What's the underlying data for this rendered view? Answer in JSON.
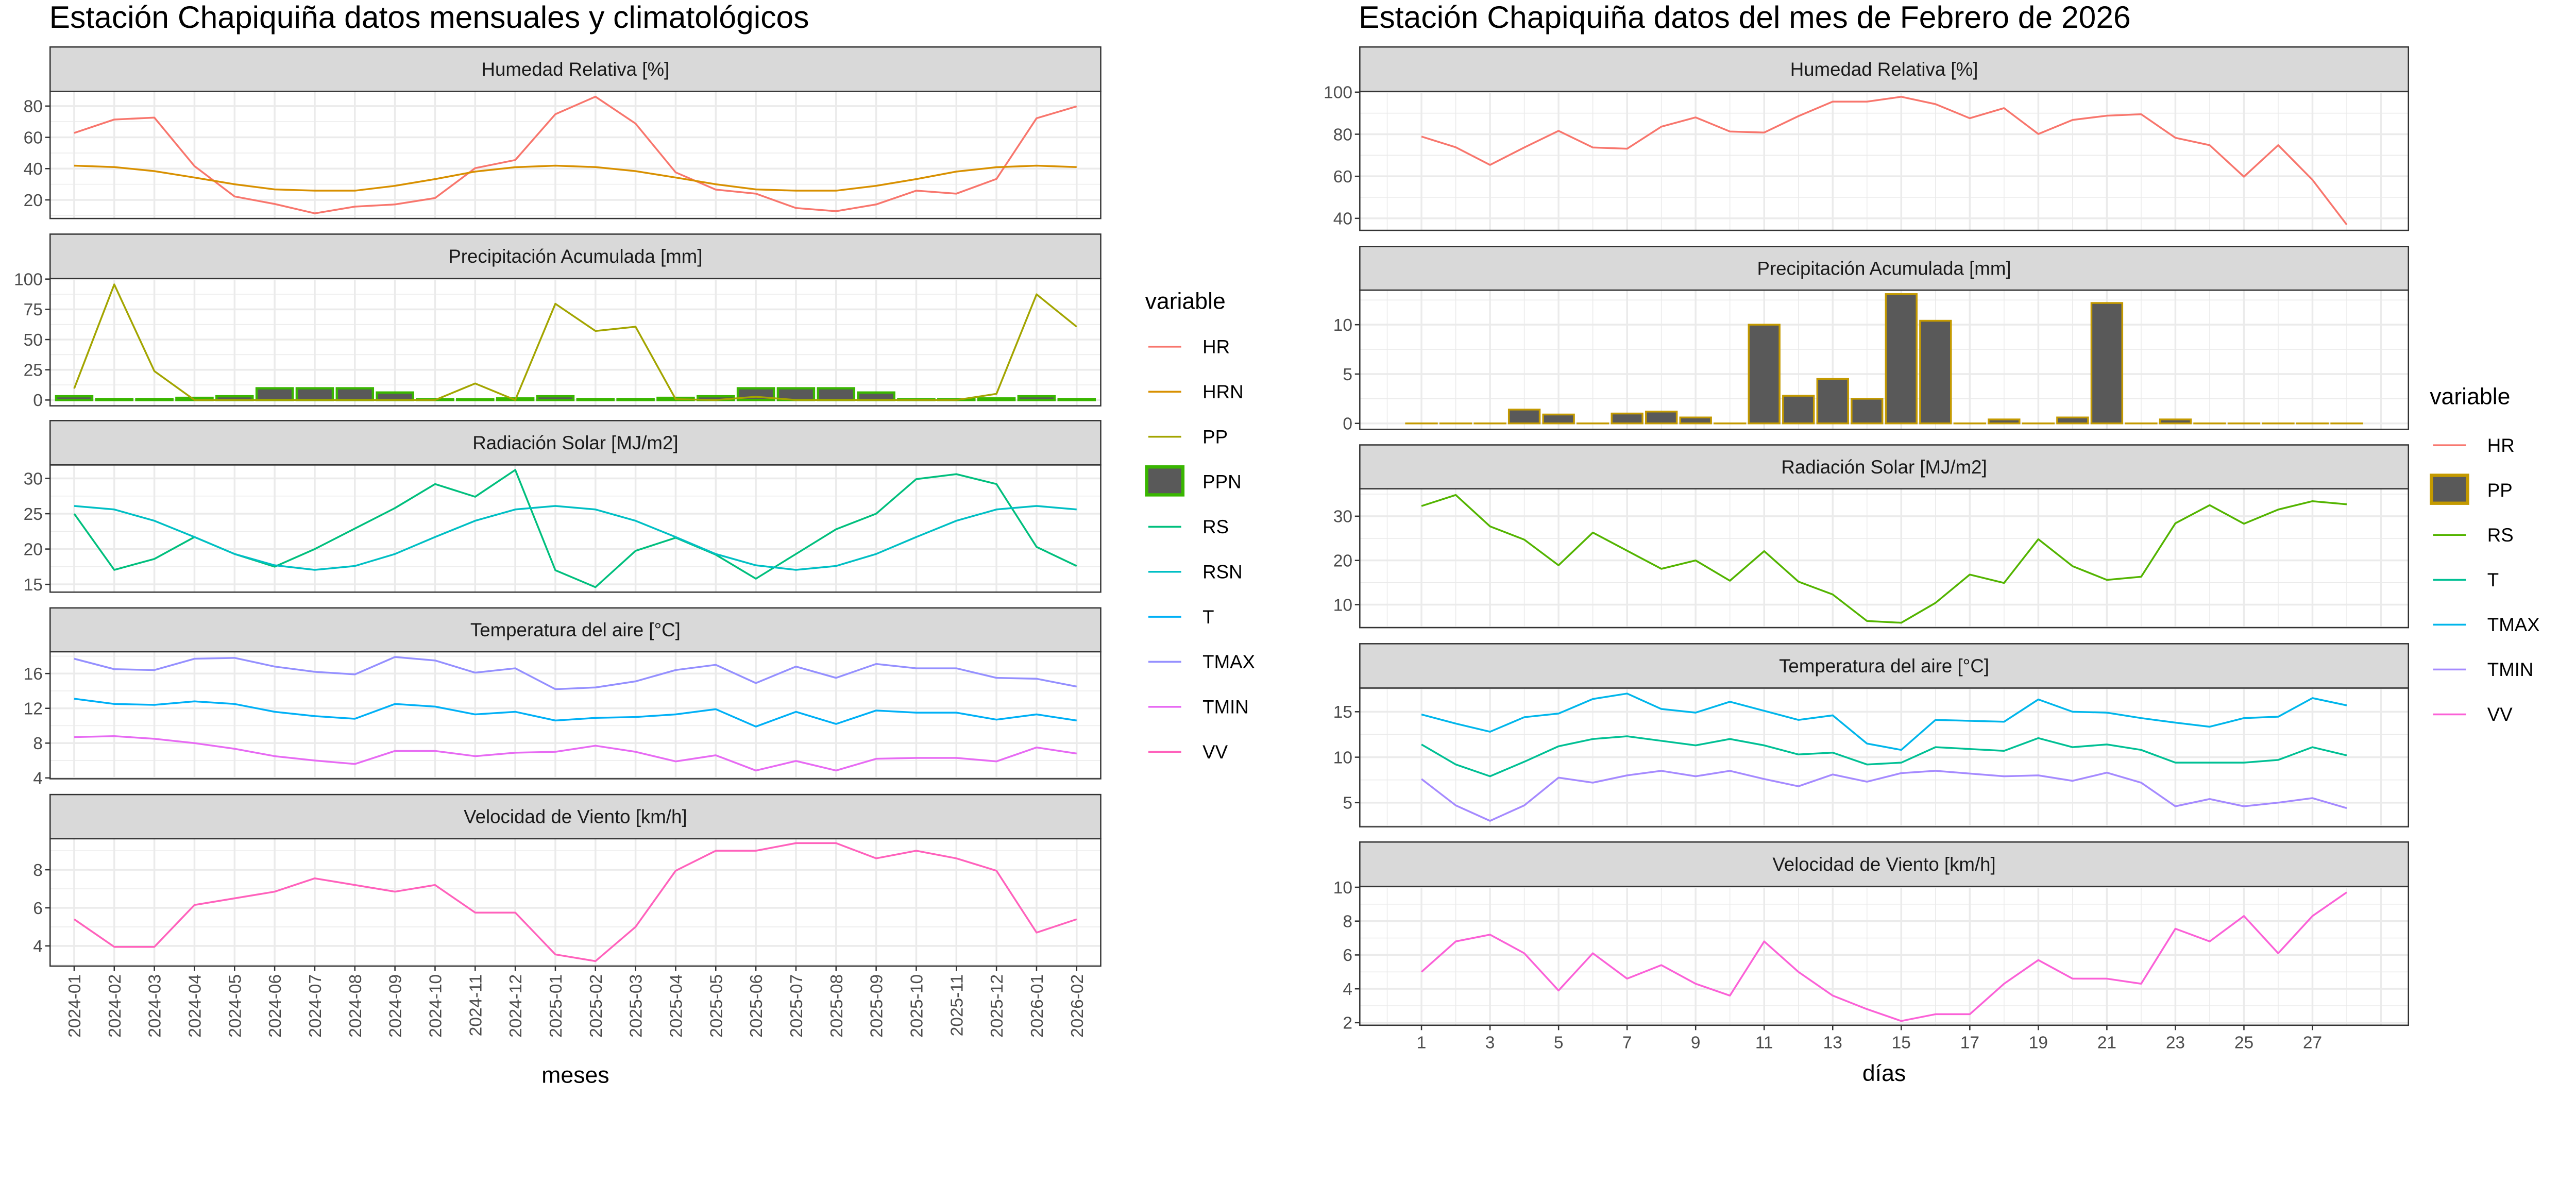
{
  "chart_data": [
    {
      "type": "line",
      "title": "Estación Chapiquiña datos mensuales y climatológicos",
      "xlabel": "meses",
      "categories": [
        "2024-01",
        "2024-02",
        "2024-03",
        "2024-04",
        "2024-05",
        "2024-06",
        "2024-07",
        "2024-08",
        "2024-09",
        "2024-10",
        "2024-11",
        "2024-12",
        "2025-01",
        "2025-02",
        "2025-03",
        "2025-04",
        "2025-05",
        "2025-06",
        "2025-07",
        "2025-08",
        "2025-09",
        "2025-10",
        "2025-11",
        "2025-12",
        "2026-01",
        "2026-02"
      ],
      "grid": true,
      "legend": {
        "title": "variable",
        "position": "right",
        "entries": [
          {
            "name": "HR",
            "color": "#F8766D",
            "key": "line"
          },
          {
            "name": "HRN",
            "color": "#D89000",
            "key": "line"
          },
          {
            "name": "PP",
            "color": "#A3A500",
            "key": "line"
          },
          {
            "name": "PPN",
            "color": "#39B600",
            "fill": "#595959",
            "key": "box"
          },
          {
            "name": "RS",
            "color": "#00BF7D",
            "key": "line"
          },
          {
            "name": "RSN",
            "color": "#00BFC4",
            "key": "line"
          },
          {
            "name": "T",
            "color": "#00B0F6",
            "key": "line"
          },
          {
            "name": "TMAX",
            "color": "#9590FF",
            "key": "line"
          },
          {
            "name": "TMIN",
            "color": "#E76BF3",
            "key": "line"
          },
          {
            "name": "VV",
            "color": "#FF62BC",
            "key": "line"
          }
        ]
      },
      "panels": [
        {
          "title": "Humedad Relativa [%]",
          "ylim": [
            8.1,
            89.4
          ],
          "yticks": [
            20,
            40,
            60,
            80
          ],
          "series": [
            {
              "name": "HR",
              "geom": "line",
              "color": "#F8766D",
              "values": [
                62.8,
                71.4,
                72.6,
                41.6,
                22.2,
                17.4,
                11.4,
                15.7,
                17.1,
                21.2,
                40.3,
                45.5,
                74.8,
                86,
                68.8,
                37.6,
                26.6,
                24,
                14.8,
                12.8,
                17.1,
                25.9,
                24,
                33.4,
                72.2,
                79.8
              ]
            },
            {
              "name": "HRN",
              "geom": "line",
              "color": "#D89000",
              "values": [
                41.9,
                41,
                38.4,
                34.3,
                30,
                26.7,
                25.9,
                25.9,
                29,
                33.3,
                38.1,
                40.9,
                41.9,
                41,
                38.4,
                34.3,
                30,
                26.7,
                25.9,
                25.9,
                29,
                33.3,
                38.1,
                40.9,
                41.9,
                41
              ]
            }
          ]
        },
        {
          "title": "Precipitación Acumulada [mm]",
          "ylim": [
            -4.8,
            100.5
          ],
          "yticks": [
            0,
            25,
            50,
            75,
            100
          ],
          "series": [
            {
              "name": "PPN",
              "geom": "bar",
              "color": "#39B600",
              "fill": "#595959",
              "values": [
                3.1,
                0.8,
                0.8,
                1.8,
                3.1,
                9.7,
                9.7,
                9.7,
                6.2,
                0.6,
                0.6,
                1.3,
                3.1,
                0.8,
                0.8,
                1.8,
                3.1,
                9.7,
                9.7,
                9.7,
                6.2,
                0.6,
                0.6,
                1.3,
                3.1,
                0.8
              ]
            },
            {
              "name": "PP",
              "geom": "line",
              "color": "#A3A500",
              "values": [
                9.5,
                95.6,
                23.9,
                0,
                0,
                0,
                0,
                0,
                0,
                0,
                13.7,
                0,
                79.6,
                57.1,
                60.6,
                0.7,
                0,
                2.7,
                0,
                0,
                0,
                0,
                0,
                5.1,
                87.4,
                60.6
              ]
            }
          ]
        },
        {
          "title": "Radiación Solar [MJ/m2]",
          "ylim": [
            13.9,
            31.9
          ],
          "yticks": [
            15,
            20,
            25,
            30
          ],
          "series": [
            {
              "name": "RS",
              "geom": "line",
              "color": "#00BF7D",
              "values": [
                25,
                17.05,
                18.6,
                21.7,
                19.3,
                17.5,
                20,
                22.9,
                25.8,
                29.2,
                27.4,
                31.2,
                17,
                14.6,
                19.75,
                21.6,
                19.2,
                15.8,
                19.3,
                22.8,
                25,
                29.9,
                30.6,
                29.2,
                20.3,
                17.6
              ]
            },
            {
              "name": "RSN",
              "geom": "line",
              "color": "#00BFC4",
              "values": [
                26.1,
                25.6,
                24,
                21.7,
                19.3,
                17.7,
                17.05,
                17.6,
                19.3,
                21.7,
                24,
                25.6,
                26.1,
                25.6,
                24,
                21.7,
                19.3,
                17.7,
                17.05,
                17.6,
                19.3,
                21.7,
                24,
                25.6,
                26.1,
                25.6
              ]
            }
          ]
        },
        {
          "title": "Temperatura del aire [°C]",
          "ylim": [
            3.9,
            18.5
          ],
          "yticks": [
            4,
            8,
            12,
            16
          ],
          "series": [
            {
              "name": "TMAX",
              "geom": "line",
              "color": "#9590FF",
              "values": [
                17.7,
                16.5,
                16.4,
                17.7,
                17.8,
                16.8,
                16.2,
                15.9,
                17.9,
                17.5,
                16.1,
                16.6,
                14.2,
                14.4,
                15.1,
                16.4,
                17,
                14.9,
                16.8,
                15.5,
                17.1,
                16.6,
                16.6,
                15.5,
                15.4,
                14.5
              ]
            },
            {
              "name": "T",
              "geom": "line",
              "color": "#00B0F6",
              "values": [
                13.1,
                12.5,
                12.4,
                12.8,
                12.5,
                11.6,
                11.1,
                10.8,
                12.5,
                12.2,
                11.3,
                11.6,
                10.6,
                10.9,
                11,
                11.3,
                11.9,
                9.9,
                11.6,
                10.2,
                11.75,
                11.5,
                11.5,
                10.7,
                11.3,
                10.6
              ]
            },
            {
              "name": "TMIN",
              "geom": "line",
              "color": "#E76BF3",
              "values": [
                8.7,
                8.8,
                8.5,
                8,
                7.35,
                6.5,
                6,
                5.6,
                7.1,
                7.1,
                6.5,
                6.9,
                7,
                7.7,
                7,
                5.9,
                6.6,
                4.85,
                5.95,
                4.85,
                6.2,
                6.3,
                6.3,
                5.9,
                7.5,
                6.8
              ]
            }
          ]
        },
        {
          "title": "Velocidad de Viento [km/h]",
          "ylim": [
            2.94,
            9.63
          ],
          "yticks": [
            4,
            6,
            8
          ],
          "series": [
            {
              "name": "VV",
              "geom": "line",
              "color": "#FF62BC",
              "values": [
                5.4,
                3.95,
                3.95,
                6.15,
                6.5,
                6.85,
                7.55,
                7.2,
                6.85,
                7.2,
                5.75,
                5.75,
                3.55,
                3.2,
                5,
                7.95,
                9,
                9,
                9.4,
                9.4,
                8.6,
                9,
                8.6,
                7.95,
                4.7,
                5.4
              ]
            }
          ]
        }
      ]
    },
    {
      "type": "line",
      "title": "Estación Chapiquiña datos del mes de Febrero de 2026",
      "xlabel": "días",
      "x": [
        1,
        2,
        3,
        4,
        5,
        6,
        7,
        8,
        9,
        10,
        11,
        12,
        13,
        14,
        15,
        16,
        17,
        18,
        19,
        20,
        21,
        22,
        23,
        24,
        25,
        26,
        27,
        28
      ],
      "xticks": [
        1,
        3,
        5,
        7,
        9,
        11,
        13,
        15,
        17,
        19,
        21,
        23,
        25,
        27
      ],
      "grid": true,
      "legend": {
        "title": "variable",
        "position": "right",
        "entries": [
          {
            "name": "HR",
            "color": "#F8766D",
            "key": "line"
          },
          {
            "name": "PP",
            "color": "#C49A00",
            "fill": "#595959",
            "key": "box"
          },
          {
            "name": "RS",
            "color": "#53B400",
            "key": "line"
          },
          {
            "name": "T",
            "color": "#00C094",
            "key": "line"
          },
          {
            "name": "TMAX",
            "color": "#00B6EB",
            "key": "line"
          },
          {
            "name": "TMIN",
            "color": "#A58AFF",
            "key": "line"
          },
          {
            "name": "VV",
            "color": "#FB61D7",
            "key": "line"
          }
        ]
      },
      "panels": [
        {
          "title": "Humedad Relativa [%]",
          "ylim": [
            34.3,
            100.3
          ],
          "yticks": [
            40,
            60,
            80,
            100
          ],
          "series": [
            {
              "name": "HR",
              "geom": "line",
              "color": "#F8766D",
              "values": [
                78.9,
                73.8,
                65.4,
                73.7,
                81.6,
                73.7,
                73.1,
                83.6,
                88,
                81.3,
                80.8,
                88.6,
                95.5,
                95.5,
                97.8,
                94.3,
                87.6,
                92.4,
                80.1,
                86.8,
                88.8,
                89.5,
                78.3,
                74.8,
                59.8,
                74.8,
                58.3,
                37
              ]
            }
          ]
        },
        {
          "title": "Precipitación Acumulada [mm]",
          "ylim": [
            -0.6,
            13.5
          ],
          "yticks": [
            0,
            5,
            10
          ],
          "series": [
            {
              "name": "PP",
              "geom": "bar",
              "color": "#C49A00",
              "fill": "#595959",
              "values": [
                0,
                0,
                0,
                1.4,
                0.9,
                0,
                1,
                1.2,
                0.6,
                0,
                10,
                2.8,
                4.5,
                2.5,
                13.1,
                10.4,
                0,
                0.4,
                0,
                0.6,
                12.2,
                0,
                0.4,
                0,
                0,
                0,
                0,
                0
              ]
            }
          ]
        },
        {
          "title": "Radiación Solar [MJ/m2]",
          "ylim": [
            4.8,
            36.2
          ],
          "yticks": [
            10,
            20,
            30
          ],
          "series": [
            {
              "name": "RS",
              "geom": "line",
              "color": "#53B400",
              "values": [
                32.3,
                34.8,
                27.7,
                24.7,
                18.9,
                26.3,
                22.2,
                18.1,
                20,
                15.4,
                22.1,
                15.2,
                12.3,
                6.3,
                5.9,
                10.4,
                16.8,
                14.9,
                24.8,
                18.7,
                15.6,
                16.3,
                28.4,
                32.5,
                28.3,
                31.5,
                33.4,
                32.7
              ]
            }
          ]
        },
        {
          "title": "Temperatura del aire [°C]",
          "ylim": [
            2.35,
            17.6
          ],
          "yticks": [
            5,
            10,
            15
          ],
          "series": [
            {
              "name": "TMAX",
              "geom": "line",
              "color": "#00B6EB",
              "values": [
                14.7,
                13.7,
                12.8,
                14.4,
                14.8,
                16.4,
                17,
                15.3,
                14.9,
                16.1,
                15.1,
                14.1,
                14.6,
                11.5,
                10.8,
                14.1,
                14,
                13.9,
                16.35,
                15,
                14.9,
                14.3,
                13.8,
                13.35,
                14.3,
                14.45,
                16.5,
                15.7
              ]
            },
            {
              "name": "T",
              "geom": "line",
              "color": "#00C094",
              "values": [
                11.4,
                9.2,
                7.9,
                9.5,
                11.2,
                12,
                12.3,
                11.8,
                11.3,
                12,
                11.3,
                10.3,
                10.5,
                9.2,
                9.4,
                11.1,
                10.9,
                10.7,
                12.1,
                11.1,
                11.4,
                10.8,
                9.4,
                9.4,
                9.4,
                9.7,
                11.1,
                10.2
              ]
            },
            {
              "name": "TMIN",
              "geom": "line",
              "color": "#A58AFF",
              "values": [
                7.6,
                4.7,
                3,
                4.7,
                7.75,
                7.2,
                8,
                8.5,
                7.9,
                8.5,
                7.6,
                6.8,
                8.1,
                7.3,
                8.25,
                8.5,
                8.2,
                7.9,
                8,
                7.4,
                8.3,
                7.2,
                4.6,
                5.4,
                4.6,
                5,
                5.5,
                4.4
              ]
            }
          ]
        },
        {
          "title": "Velocidad de Viento [km/h]",
          "ylim": [
            1.85,
            10.05
          ],
          "yticks": [
            2,
            4,
            6,
            8,
            10
          ],
          "series": [
            {
              "name": "VV",
              "geom": "line",
              "color": "#FB61D7",
              "values": [
                5,
                6.8,
                7.2,
                6.1,
                3.9,
                6.1,
                4.6,
                5.4,
                4.3,
                3.6,
                6.8,
                5,
                3.6,
                2.8,
                2.1,
                2.5,
                2.5,
                4.3,
                5.7,
                4.6,
                4.6,
                4.3,
                7.55,
                6.8,
                8.3,
                6.1,
                8.3,
                9.7
              ]
            }
          ]
        }
      ]
    }
  ]
}
